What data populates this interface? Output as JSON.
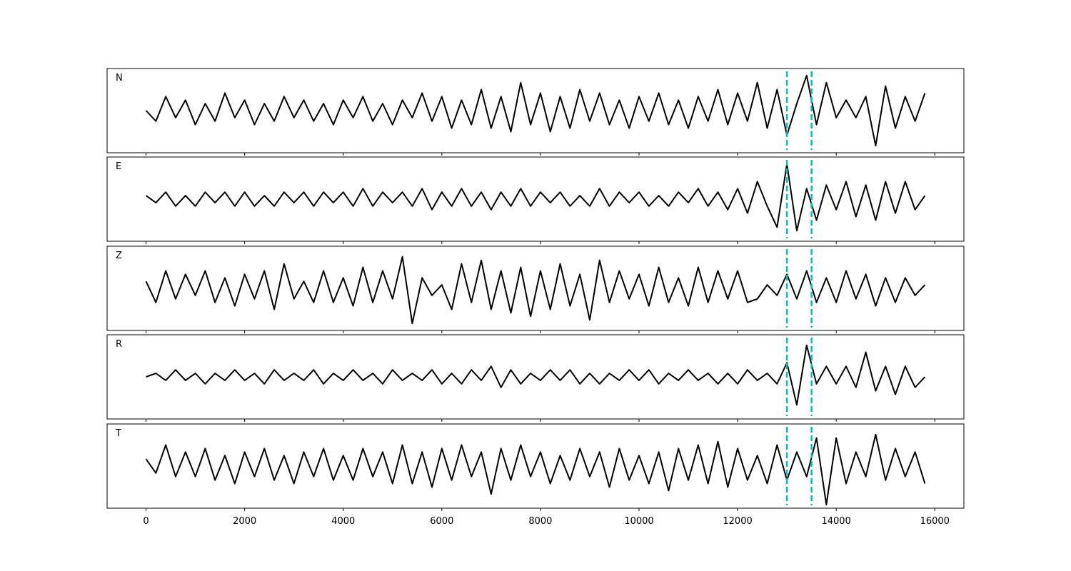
{
  "chart_data": [
    {
      "type": "line",
      "title": "N",
      "xlim": [
        -790,
        16590
      ],
      "ylim": [
        -12,
        12
      ],
      "vlines": [
        13000,
        13500
      ],
      "vline_color": "#00bfbf",
      "x": [
        0,
        200,
        400,
        600,
        800,
        1000,
        1200,
        1400,
        1600,
        1800,
        2000,
        2200,
        2400,
        2600,
        2800,
        3000,
        3200,
        3400,
        3600,
        3800,
        4000,
        4200,
        4400,
        4600,
        4800,
        5000,
        5200,
        5400,
        5600,
        5800,
        6000,
        6200,
        6400,
        6600,
        6800,
        7000,
        7200,
        7400,
        7600,
        7800,
        8000,
        8200,
        8400,
        8600,
        8800,
        9000,
        9200,
        9400,
        9600,
        9800,
        10000,
        10200,
        10400,
        10600,
        10800,
        11000,
        11200,
        11400,
        11600,
        11800,
        12000,
        12200,
        12400,
        12600,
        12800,
        13000,
        13200,
        13400,
        13600,
        13800,
        14000,
        14200,
        14400,
        14600,
        14800,
        15000,
        15200,
        15400,
        15600,
        15800
      ],
      "series": [
        {
          "color": "#000000",
          "values": [
            0,
            -3,
            4,
            -2,
            3,
            -4,
            2,
            -3,
            5,
            -2,
            3,
            -4,
            2,
            -3,
            4,
            -2,
            3,
            -3,
            2,
            -4,
            3,
            -2,
            4,
            -3,
            2,
            -4,
            3,
            -2,
            5,
            -3,
            4,
            -5,
            3,
            -4,
            6,
            -5,
            4,
            -6,
            8,
            -4,
            5,
            -6,
            4,
            -5,
            6,
            -3,
            5,
            -4,
            3,
            -5,
            4,
            -3,
            5,
            -4,
            3,
            -5,
            4,
            -3,
            6,
            -4,
            5,
            -3,
            8,
            -5,
            6,
            -7,
            2,
            10,
            -4,
            8,
            -2,
            3,
            -2,
            4,
            -10,
            7,
            -5,
            4,
            -3,
            5
          ]
        }
      ]
    },
    {
      "type": "line",
      "title": "E",
      "xlim": [
        -790,
        16590
      ],
      "ylim": [
        -12,
        12
      ],
      "vlines": [
        13000,
        13500
      ],
      "vline_color": "#00bfbf",
      "x": [
        0,
        200,
        400,
        600,
        800,
        1000,
        1200,
        1400,
        1600,
        1800,
        2000,
        2200,
        2400,
        2600,
        2800,
        3000,
        3200,
        3400,
        3600,
        3800,
        4000,
        4200,
        4400,
        4600,
        4800,
        5000,
        5200,
        5400,
        5600,
        5800,
        6000,
        6200,
        6400,
        6600,
        6800,
        7000,
        7200,
        7400,
        7600,
        7800,
        8000,
        8200,
        8400,
        8600,
        8800,
        9000,
        9200,
        9400,
        9600,
        9800,
        10000,
        10200,
        10400,
        10600,
        10800,
        11000,
        11200,
        11400,
        11600,
        11800,
        12000,
        12200,
        12400,
        12600,
        12800,
        13000,
        13200,
        13400,
        13600,
        13800,
        14000,
        14200,
        14400,
        14600,
        14800,
        15000,
        15200,
        15400,
        15600,
        15800
      ],
      "series": [
        {
          "color": "#000000",
          "values": [
            1,
            -1,
            2,
            -2,
            1,
            -2,
            2,
            -1,
            2,
            -2,
            2,
            -2,
            1,
            -2,
            2,
            -1,
            2,
            -2,
            2,
            -1,
            2,
            -2,
            3,
            -2,
            2,
            -1,
            2,
            -2,
            3,
            -3,
            2,
            -2,
            3,
            -2,
            2,
            -3,
            2,
            -2,
            3,
            -2,
            2,
            -1,
            2,
            -2,
            1,
            -2,
            3,
            -2,
            2,
            -1,
            2,
            -2,
            1,
            -2,
            2,
            -1,
            3,
            -2,
            2,
            -3,
            3,
            -4,
            5,
            -2,
            -8,
            10,
            -9,
            3,
            -6,
            4,
            -3,
            5,
            -5,
            4,
            -6,
            5,
            -4,
            5,
            -3,
            1
          ]
        }
      ]
    },
    {
      "type": "line",
      "title": "Z",
      "xlim": [
        -790,
        16590
      ],
      "ylim": [
        -12,
        12
      ],
      "vlines": [
        13000,
        13500
      ],
      "vline_color": "#00bfbf",
      "x": [
        0,
        200,
        400,
        600,
        800,
        1000,
        1200,
        1400,
        1600,
        1800,
        2000,
        2200,
        2400,
        2600,
        2800,
        3000,
        3200,
        3400,
        3600,
        3800,
        4000,
        4200,
        4400,
        4600,
        4800,
        5000,
        5200,
        5400,
        5600,
        5800,
        6000,
        6200,
        6400,
        6600,
        6800,
        7000,
        7200,
        7400,
        7600,
        7800,
        8000,
        8200,
        8400,
        8600,
        8800,
        9000,
        9200,
        9400,
        9600,
        9800,
        10000,
        10200,
        10400,
        10600,
        10800,
        11000,
        11200,
        11400,
        11600,
        11800,
        12000,
        12200,
        12400,
        12600,
        12800,
        13000,
        13200,
        13400,
        13600,
        13800,
        14000,
        14200,
        14400,
        14600,
        14800,
        15000,
        15200,
        15400,
        15600,
        15800
      ],
      "series": [
        {
          "color": "#000000",
          "values": [
            2,
            -4,
            5,
            -3,
            4,
            -2,
            5,
            -4,
            3,
            -5,
            4,
            -3,
            5,
            -6,
            7,
            -3,
            2,
            -4,
            5,
            -4,
            3,
            -5,
            6,
            -4,
            5,
            -3,
            9,
            -10,
            3,
            -2,
            1,
            -6,
            7,
            -4,
            8,
            -6,
            5,
            -7,
            6,
            -8,
            5,
            -6,
            7,
            -5,
            4,
            -9,
            8,
            -4,
            5,
            -3,
            4,
            -5,
            6,
            -4,
            3,
            -5,
            6,
            -4,
            5,
            -3,
            5,
            -4,
            -3,
            1,
            -2,
            4,
            -3,
            5,
            -4,
            3,
            -4,
            5,
            -3,
            4,
            -5,
            3,
            -4,
            3,
            -2,
            1
          ]
        }
      ]
    },
    {
      "type": "line",
      "title": "R",
      "xlim": [
        -790,
        16590
      ],
      "ylim": [
        -12,
        12
      ],
      "vlines": [
        13000,
        13500
      ],
      "vline_color": "#00bfbf",
      "x": [
        0,
        200,
        400,
        600,
        800,
        1000,
        1200,
        1400,
        1600,
        1800,
        2000,
        2200,
        2400,
        2600,
        2800,
        3000,
        3200,
        3400,
        3600,
        3800,
        4000,
        4200,
        4400,
        4600,
        4800,
        5000,
        5200,
        5400,
        5600,
        5800,
        6000,
        6200,
        6400,
        6600,
        6800,
        7000,
        7200,
        7400,
        7600,
        7800,
        8000,
        8200,
        8400,
        8600,
        8800,
        9000,
        9200,
        9400,
        9600,
        9800,
        10000,
        10200,
        10400,
        10600,
        10800,
        11000,
        11200,
        11400,
        11600,
        11800,
        12000,
        12200,
        12400,
        12600,
        12800,
        13000,
        13200,
        13400,
        13600,
        13800,
        14000,
        14200,
        14400,
        14600,
        14800,
        15000,
        15200,
        15400,
        15600,
        15800
      ],
      "series": [
        {
          "color": "#000000",
          "values": [
            0,
            1,
            -1,
            2,
            -1,
            1,
            -2,
            1,
            -1,
            2,
            -1,
            1,
            -2,
            2,
            -1,
            1,
            -1,
            2,
            -2,
            1,
            -1,
            2,
            -1,
            1,
            -2,
            2,
            -1,
            1,
            -1,
            2,
            -2,
            1,
            -2,
            2,
            -1,
            3,
            -3,
            2,
            -2,
            1,
            -1,
            2,
            -1,
            2,
            -2,
            1,
            -2,
            1,
            -1,
            2,
            -1,
            2,
            -2,
            1,
            -1,
            2,
            -1,
            1,
            -2,
            1,
            -2,
            2,
            -1,
            1,
            -2,
            4,
            -8,
            9,
            -2,
            3,
            -2,
            3,
            -3,
            7,
            -4,
            3,
            -5,
            3,
            -3,
            0
          ]
        }
      ]
    },
    {
      "type": "line",
      "title": "T",
      "xlim": [
        -790,
        16590
      ],
      "ylim": [
        -12,
        12
      ],
      "vlines": [
        13000,
        13500
      ],
      "vline_color": "#00bfbf",
      "xticks": [
        0,
        2000,
        4000,
        6000,
        8000,
        10000,
        12000,
        14000,
        16000
      ],
      "x": [
        0,
        200,
        400,
        600,
        800,
        1000,
        1200,
        1400,
        1600,
        1800,
        2000,
        2200,
        2400,
        2600,
        2800,
        3000,
        3200,
        3400,
        3600,
        3800,
        4000,
        4200,
        4400,
        4600,
        4800,
        5000,
        5200,
        5400,
        5600,
        5800,
        6000,
        6200,
        6400,
        6600,
        6800,
        7000,
        7200,
        7400,
        7600,
        7800,
        8000,
        8200,
        8400,
        8600,
        8800,
        9000,
        9200,
        9400,
        9600,
        9800,
        10000,
        10200,
        10400,
        10600,
        10800,
        11000,
        11200,
        11400,
        11600,
        11800,
        12000,
        12200,
        12400,
        12600,
        12800,
        13000,
        13200,
        13400,
        13600,
        13800,
        14000,
        14200,
        14400,
        14600,
        14800,
        15000,
        15200,
        15400,
        15600,
        15800
      ],
      "series": [
        {
          "color": "#000000",
          "values": [
            2,
            -2,
            6,
            -3,
            4,
            -3,
            5,
            -4,
            3,
            -5,
            4,
            -3,
            5,
            -4,
            3,
            -5,
            4,
            -3,
            5,
            -4,
            3,
            -4,
            5,
            -3,
            4,
            -5,
            6,
            -5,
            4,
            -6,
            5,
            -4,
            6,
            -3,
            4,
            -8,
            5,
            -4,
            6,
            -3,
            4,
            -5,
            3,
            -4,
            5,
            -3,
            4,
            -6,
            5,
            -4,
            3,
            -5,
            4,
            -7,
            5,
            -4,
            6,
            -5,
            7,
            -6,
            5,
            -4,
            3,
            -5,
            6,
            -4,
            4,
            -3,
            8,
            -11,
            8,
            -5,
            4,
            -3,
            9,
            -4,
            5,
            -3,
            4,
            -5
          ]
        }
      ]
    }
  ]
}
